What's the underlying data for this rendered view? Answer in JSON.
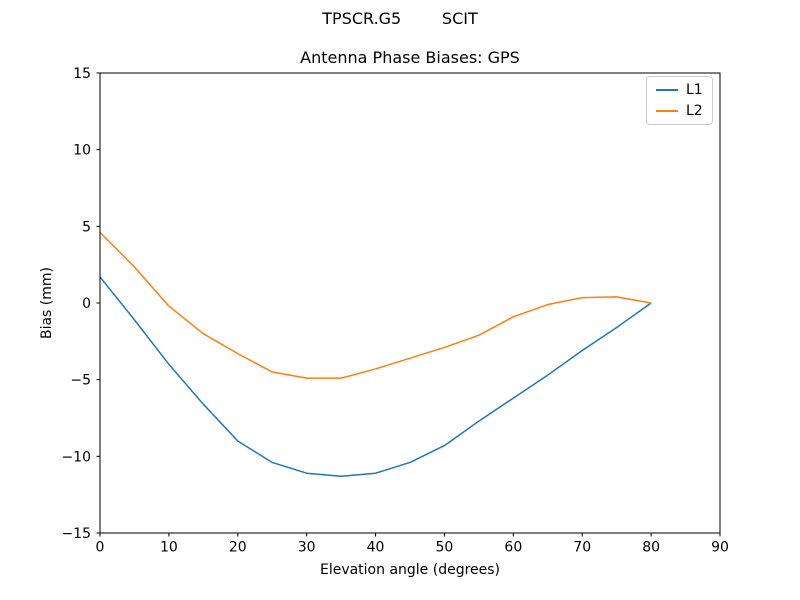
{
  "figure": {
    "suptitle": "TPSCR.G5        SCIT",
    "title": "Antenna Phase Biases: GPS"
  },
  "chart_data": {
    "type": "line",
    "suptitle": "TPSCR.G5        SCIT",
    "title": "Antenna Phase Biases: GPS",
    "xlabel": "Elevation angle (degrees)",
    "ylabel": "Bias (mm)",
    "xlim": [
      0,
      90
    ],
    "ylim": [
      -15,
      15
    ],
    "xticks": [
      0,
      10,
      20,
      30,
      40,
      50,
      60,
      70,
      80,
      90
    ],
    "yticks": [
      -15,
      -10,
      -5,
      0,
      5,
      10,
      15
    ],
    "grid": false,
    "legend_position": "upper right",
    "x": [
      0,
      5,
      10,
      15,
      20,
      25,
      30,
      35,
      40,
      45,
      50,
      55,
      60,
      65,
      70,
      75,
      80
    ],
    "series": [
      {
        "name": "L1",
        "color": "#1f77b4",
        "values": [
          1.7,
          -1.1,
          -4.0,
          -6.6,
          -9.0,
          -10.4,
          -11.1,
          -11.3,
          -11.1,
          -10.4,
          -9.3,
          -7.7,
          -6.2,
          -4.7,
          -3.1,
          -1.6,
          0.0
        ]
      },
      {
        "name": "L2",
        "color": "#ff7f0e",
        "values": [
          4.6,
          2.35,
          -0.2,
          -2.0,
          -3.3,
          -4.5,
          -4.9,
          -4.9,
          -4.3,
          -3.6,
          -2.9,
          -2.1,
          -0.9,
          -0.1,
          0.35,
          0.4,
          0.0
        ]
      }
    ]
  },
  "style": {
    "spine_color": "#000000",
    "background": "#ffffff",
    "legend_border": "#cccccc"
  }
}
